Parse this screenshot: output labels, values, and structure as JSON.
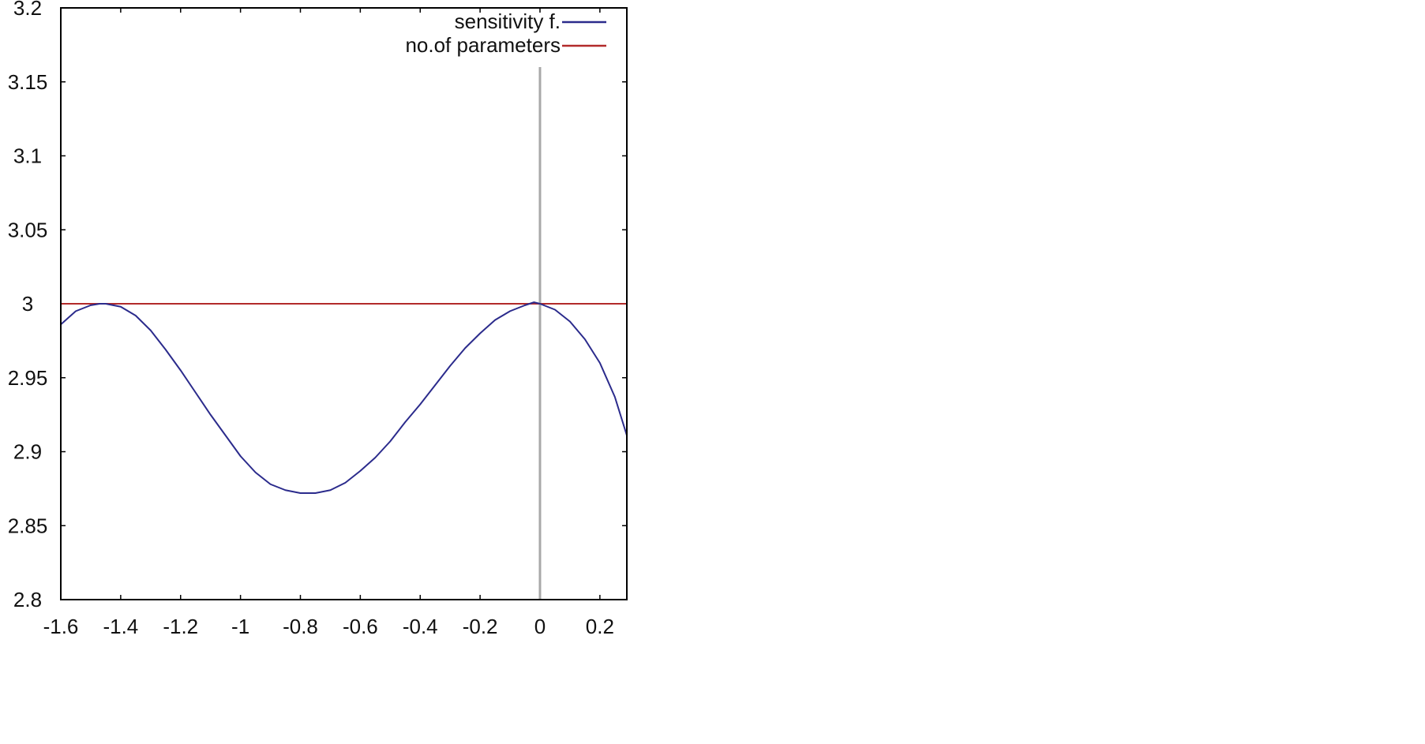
{
  "chart_data": {
    "type": "line",
    "xlim": [
      -1.6,
      0.29
    ],
    "ylim": [
      2.8,
      3.2
    ],
    "x_ticks": [
      -1.6,
      -1.4,
      -1.2,
      -1,
      -0.8,
      -0.6,
      -0.4,
      -0.2,
      0,
      0.2
    ],
    "x_tick_labels": [
      "-1.6",
      "-1.4",
      "-1.2",
      "-1",
      "-0.8",
      "-0.6",
      "-0.4",
      "-0.2",
      "0",
      "0.2"
    ],
    "y_ticks": [
      2.8,
      2.85,
      2.9,
      2.95,
      3,
      3.05,
      3.1,
      3.15,
      3.2
    ],
    "y_tick_labels": [
      "2.8",
      "2.85",
      "2.9",
      "2.95",
      "3",
      "3.05",
      "3.1",
      "3.15",
      "3.2"
    ],
    "grid": false,
    "legend_position": "top-right",
    "vertical_reference_line": {
      "x": 0,
      "color": "#a9a9a9"
    },
    "series": [
      {
        "name": "sensitivity f.",
        "color": "#2b2b8c",
        "x": [
          -1.6,
          -1.55,
          -1.5,
          -1.47,
          -1.45,
          -1.4,
          -1.35,
          -1.3,
          -1.25,
          -1.2,
          -1.15,
          -1.1,
          -1.05,
          -1.0,
          -0.95,
          -0.9,
          -0.85,
          -0.8,
          -0.75,
          -0.7,
          -0.65,
          -0.6,
          -0.55,
          -0.5,
          -0.45,
          -0.4,
          -0.35,
          -0.3,
          -0.25,
          -0.2,
          -0.15,
          -0.1,
          -0.05,
          -0.02,
          0.0,
          0.05,
          0.1,
          0.15,
          0.2,
          0.25,
          0.29
        ],
        "y": [
          2.986,
          2.995,
          2.999,
          3.0,
          3.0,
          2.998,
          2.992,
          2.982,
          2.969,
          2.955,
          2.94,
          2.925,
          2.911,
          2.897,
          2.886,
          2.878,
          2.874,
          2.872,
          2.872,
          2.874,
          2.879,
          2.887,
          2.896,
          2.907,
          2.92,
          2.932,
          2.945,
          2.958,
          2.97,
          2.98,
          2.989,
          2.995,
          2.999,
          3.001,
          3.0,
          2.996,
          2.988,
          2.976,
          2.96,
          2.937,
          2.911
        ]
      },
      {
        "name": "no.of parameters",
        "color": "#b22a2a",
        "x": [
          -1.6,
          0.29
        ],
        "y": [
          3.0,
          3.0
        ]
      }
    ]
  }
}
